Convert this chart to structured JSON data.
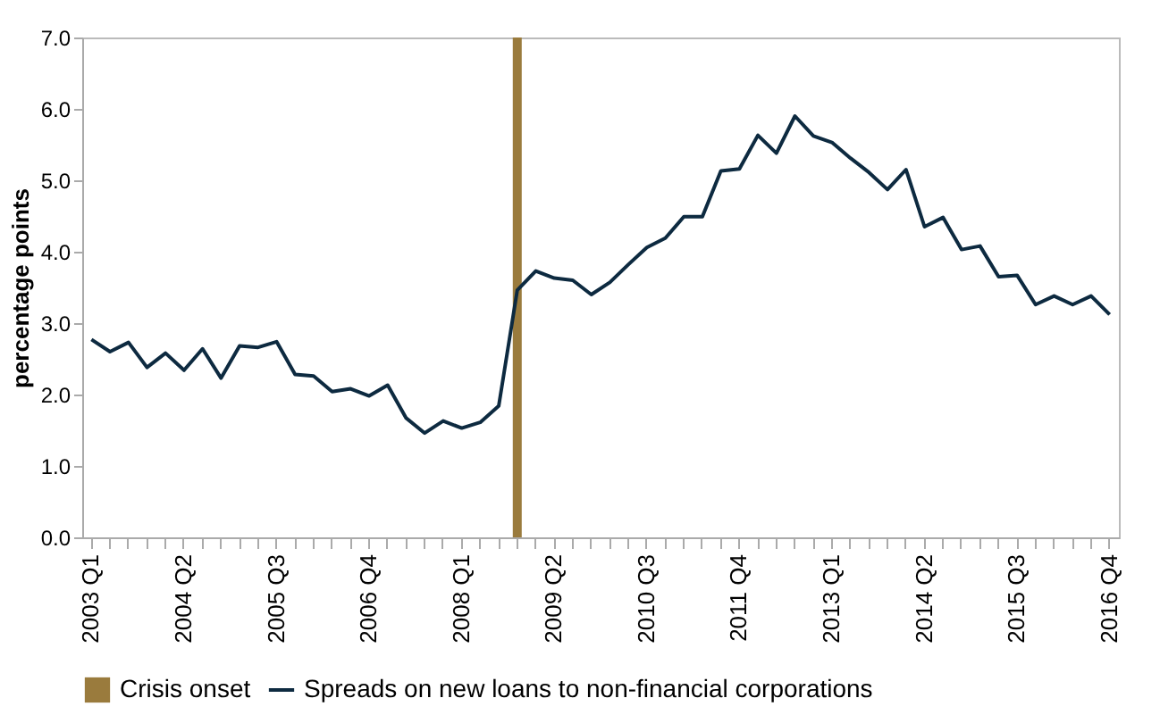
{
  "chart_data": {
    "type": "line",
    "ylabel": "percentage points",
    "categories": [
      "2003 Q1",
      null,
      null,
      null,
      null,
      "2004 Q2",
      null,
      null,
      null,
      null,
      "2005 Q3",
      null,
      null,
      null,
      null,
      "2006 Q4",
      null,
      null,
      null,
      null,
      "2008 Q1",
      null,
      null,
      null,
      null,
      "2009 Q2",
      null,
      null,
      null,
      null,
      "2010 Q3",
      null,
      null,
      null,
      null,
      "2011 Q4",
      null,
      null,
      null,
      null,
      "2013 Q1",
      null,
      null,
      null,
      null,
      "2014 Q2",
      null,
      null,
      null,
      null,
      "2015 Q3",
      null,
      null,
      null,
      null,
      "2016 Q4"
    ],
    "series": [
      {
        "name": "Crisis onset",
        "type": "bar",
        "color": "#9a7b3d",
        "values": [
          null,
          null,
          null,
          null,
          null,
          null,
          null,
          null,
          null,
          null,
          null,
          null,
          null,
          null,
          null,
          null,
          null,
          null,
          null,
          null,
          null,
          null,
          null,
          7.0,
          null,
          null,
          null,
          null,
          null,
          null,
          null,
          null,
          null,
          null,
          null,
          null,
          null,
          null,
          null,
          null,
          null,
          null,
          null,
          null,
          null,
          null,
          null,
          null,
          null,
          null,
          null,
          null,
          null,
          null,
          null,
          null
        ]
      },
      {
        "name": "Spreads on new loans to non-financial corporations",
        "color": "#0d2a40",
        "values": [
          2.77,
          2.6,
          2.73,
          2.38,
          2.58,
          2.34,
          2.64,
          2.23,
          2.68,
          2.66,
          2.74,
          2.28,
          2.26,
          2.04,
          2.08,
          1.98,
          2.13,
          1.67,
          1.46,
          1.63,
          1.53,
          1.61,
          1.84,
          3.46,
          3.73,
          3.63,
          3.6,
          3.4,
          3.57,
          3.82,
          4.06,
          4.19,
          4.49,
          4.49,
          5.13,
          5.16,
          5.63,
          5.38,
          5.9,
          5.62,
          5.53,
          5.31,
          5.11,
          4.87,
          5.15,
          4.35,
          4.48,
          4.03,
          4.08,
          3.65,
          3.67,
          3.26,
          3.38,
          3.26,
          3.38,
          3.12
        ]
      }
    ],
    "ylim": [
      0,
      7
    ],
    "yticks": [
      {
        "value": 0,
        "label": "0.0"
      },
      {
        "value": 1,
        "label": "1.0"
      },
      {
        "value": 2,
        "label": "2.0"
      },
      {
        "value": 3,
        "label": "3.0"
      },
      {
        "value": 4,
        "label": "4.0"
      },
      {
        "value": 5,
        "label": "5.0"
      },
      {
        "value": 6,
        "label": "6.0"
      },
      {
        "value": 7,
        "label": "7.0"
      }
    ],
    "legend": "bottom"
  }
}
